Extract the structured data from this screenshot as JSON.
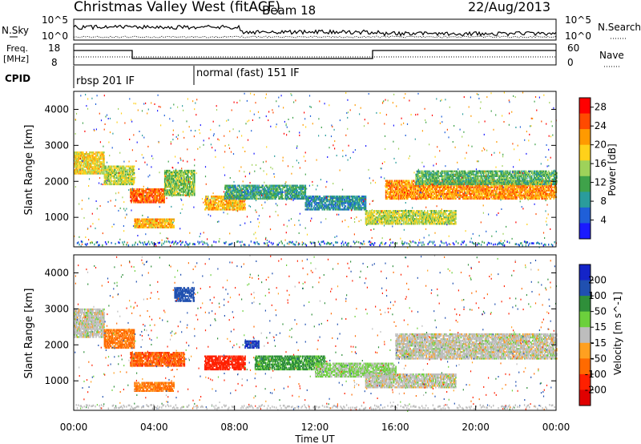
{
  "header": {
    "title": "Christmas Valley West (fitACF)",
    "beam": "Beam 18",
    "date": "22/Aug/2013"
  },
  "aux_panels": {
    "nsky_label": "N.Sky",
    "nsky_ticks": [
      "10^5",
      "10^0"
    ],
    "nsearch_label": "N.Search",
    "nsearch_ticks": [
      "10^5",
      "10^0"
    ],
    "freq_label_line1": "Freq.",
    "freq_label_line2": "[MHz]",
    "freq_ticks": [
      "18",
      "8"
    ],
    "nave_label": "Nave",
    "nave_ticks": [
      "60",
      "0"
    ],
    "cpid_label": "CPID",
    "cpid_segments": [
      {
        "text": "rbsp 201 IF",
        "start": "00:00",
        "end": "06:00"
      },
      {
        "text": "normal (fast) 151 IF",
        "start": "06:00",
        "end": "24:00"
      }
    ]
  },
  "chart_data": [
    {
      "type": "heatmap",
      "title": "Power",
      "xlabel": "Time UT",
      "ylabel": "Slant Range [km]",
      "x_ticks": [
        "00:00",
        "04:00",
        "08:00",
        "12:00",
        "16:00",
        "20:00",
        "00:00"
      ],
      "xlim_hours": [
        0,
        24
      ],
      "y_ticks": [
        1000,
        2000,
        3000,
        4000
      ],
      "ylim": [
        180,
        4500
      ],
      "colorbar": {
        "label": "Power [dB]",
        "ticks": [
          4,
          8,
          12,
          16,
          20,
          24,
          28
        ],
        "range": [
          0,
          30
        ],
        "colors": [
          "#1a1aff",
          "#1f5fd8",
          "#2a9c9c",
          "#3fa24a",
          "#9ed25a",
          "#ffd11a",
          "#ff9a00",
          "#ff4a00",
          "#ff0000"
        ]
      },
      "bands": [
        {
          "t0": 0.0,
          "t1": 1.5,
          "r0": 2200,
          "r1": 2800,
          "level": 18
        },
        {
          "t0": 1.5,
          "t1": 3.0,
          "r0": 1900,
          "r1": 2400,
          "level": 16
        },
        {
          "t0": 2.8,
          "t1": 4.5,
          "r0": 1400,
          "r1": 1800,
          "level": 24
        },
        {
          "t0": 3.0,
          "t1": 5.0,
          "r0": 700,
          "r1": 950,
          "level": 20
        },
        {
          "t0": 4.5,
          "t1": 6.0,
          "r0": 1600,
          "r1": 2300,
          "level": 14
        },
        {
          "t0": 6.5,
          "t1": 8.5,
          "r0": 1200,
          "r1": 1600,
          "level": 20
        },
        {
          "t0": 7.5,
          "t1": 11.5,
          "r0": 1500,
          "r1": 1900,
          "level": 10
        },
        {
          "t0": 11.5,
          "t1": 14.5,
          "r0": 1200,
          "r1": 1600,
          "level": 8
        },
        {
          "t0": 14.5,
          "t1": 19.0,
          "r0": 800,
          "r1": 1200,
          "level": 16
        },
        {
          "t0": 15.5,
          "t1": 24.0,
          "r0": 1500,
          "r1": 2000,
          "level": 22
        },
        {
          "t0": 17.0,
          "t1": 24.0,
          "r0": 1900,
          "r1": 2300,
          "level": 12
        }
      ]
    },
    {
      "type": "heatmap",
      "title": "Velocity",
      "xlabel": "Time UT",
      "ylabel": "Slant Range [km]",
      "x_ticks": [
        "00:00",
        "04:00",
        "08:00",
        "12:00",
        "16:00",
        "20:00",
        "00:00"
      ],
      "xlim_hours": [
        0,
        24
      ],
      "y_ticks": [
        1000,
        2000,
        3000,
        4000
      ],
      "ylim": [
        180,
        4500
      ],
      "colorbar": {
        "label": "Velocity [m s^-1]",
        "ticks": [
          200,
          100,
          50,
          15,
          -15,
          -50,
          -100,
          -200
        ],
        "range": [
          -250,
          250
        ],
        "colors": [
          "#1424c8",
          "#2050b0",
          "#2f8f3a",
          "#6cd03c",
          "#bdbdbd",
          "#ffa020",
          "#ff6a00",
          "#ff2000",
          "#e00000"
        ]
      },
      "bands": [
        {
          "t0": 0.0,
          "t1": 1.5,
          "r0": 2200,
          "r1": 3000,
          "level": 0
        },
        {
          "t0": 1.5,
          "t1": 3.0,
          "r0": 1900,
          "r1": 2400,
          "level": -60
        },
        {
          "t0": 2.8,
          "t1": 5.5,
          "r0": 1400,
          "r1": 1800,
          "level": -90
        },
        {
          "t0": 3.0,
          "t1": 5.0,
          "r0": 700,
          "r1": 950,
          "level": -60
        },
        {
          "t0": 5.0,
          "t1": 6.0,
          "r0": 3200,
          "r1": 3600,
          "level": 180
        },
        {
          "t0": 6.5,
          "t1": 8.5,
          "r0": 1300,
          "r1": 1700,
          "level": -120
        },
        {
          "t0": 8.5,
          "t1": 9.2,
          "r0": 1900,
          "r1": 2100,
          "level": 200
        },
        {
          "t0": 9.0,
          "t1": 12.5,
          "r0": 1300,
          "r1": 1700,
          "level": 60
        },
        {
          "t0": 12.0,
          "t1": 16.0,
          "r0": 1100,
          "r1": 1500,
          "level": 20
        },
        {
          "t0": 14.5,
          "t1": 19.0,
          "r0": 800,
          "r1": 1200,
          "level": 0
        },
        {
          "t0": 16.0,
          "t1": 24.0,
          "r0": 1600,
          "r1": 2300,
          "level": 0
        }
      ]
    }
  ]
}
